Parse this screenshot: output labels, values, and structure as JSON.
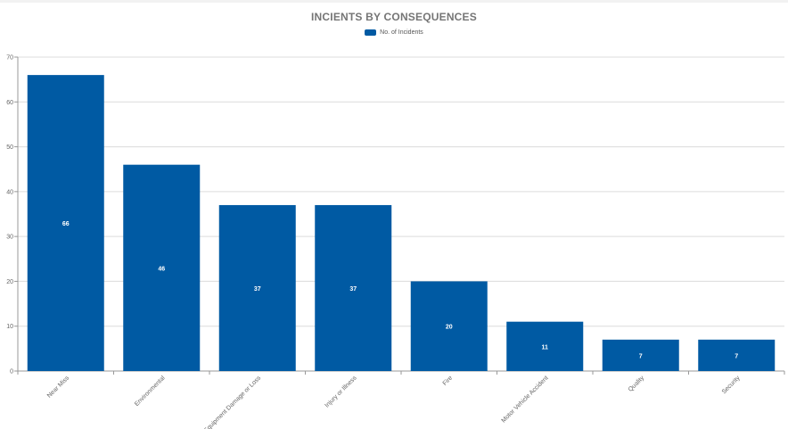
{
  "chart_data": {
    "type": "bar",
    "title": "INCIENTS BY CONSEQUENCES",
    "categories": [
      "Near Miss",
      "Environmental",
      "Equipment Damage or Loss",
      "Injury or Illness",
      "Fire",
      "Motor Vehicle Accident",
      "Quality",
      "Security"
    ],
    "series": [
      {
        "name": "No. of Incidents",
        "values": [
          66,
          46,
          37,
          37,
          20,
          11,
          7,
          7
        ],
        "color": "#005aa3"
      }
    ],
    "xlabel": "",
    "ylabel": "",
    "ylim": [
      0,
      70
    ],
    "yticks": [
      0,
      10,
      20,
      30,
      40,
      50,
      60,
      70
    ],
    "grid": true,
    "legend": "top-center",
    "data_labels": true
  }
}
